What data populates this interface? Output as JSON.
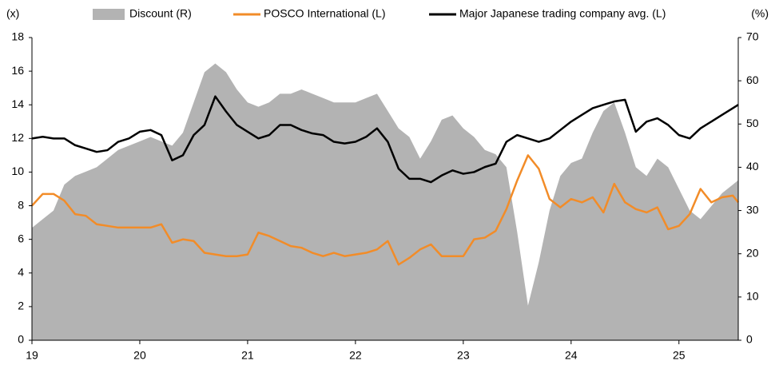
{
  "chart_data": {
    "type": "line",
    "y_axis_label": "(x)",
    "y2_axis_label": "(%)",
    "x": [
      19.0,
      19.1,
      19.2,
      19.3,
      19.4,
      19.5,
      19.6,
      19.7,
      19.8,
      19.9,
      20.0,
      20.1,
      20.2,
      20.3,
      20.4,
      20.5,
      20.6,
      20.7,
      20.8,
      20.9,
      21.0,
      21.1,
      21.2,
      21.3,
      21.4,
      21.5,
      21.6,
      21.7,
      21.8,
      21.9,
      22.0,
      22.1,
      22.2,
      22.3,
      22.4,
      22.5,
      22.6,
      22.7,
      22.8,
      22.9,
      23.0,
      23.1,
      23.2,
      23.3,
      23.4,
      23.5,
      23.6,
      23.7,
      23.8,
      23.9,
      24.0,
      24.1,
      24.2,
      24.3,
      24.4,
      24.5,
      24.6,
      24.7,
      24.8,
      24.9,
      25.0,
      25.1,
      25.2,
      25.3,
      25.4,
      25.5,
      25.55
    ],
    "series": [
      {
        "name": "Discount (R)",
        "color": "#b3b3b3",
        "kind": "area",
        "axis": "y2",
        "values": [
          26,
          28,
          30,
          36,
          38,
          39,
          40,
          42,
          44,
          45,
          46,
          47,
          46,
          45,
          48,
          55,
          62,
          64,
          62,
          58,
          55,
          54,
          55,
          57,
          57,
          58,
          57,
          56,
          55,
          55,
          55,
          56,
          57,
          53,
          49,
          47,
          42,
          46,
          51,
          52,
          49,
          47,
          44,
          43,
          40,
          25,
          8,
          18,
          30,
          38,
          41,
          42,
          48,
          53,
          55,
          48,
          40,
          38,
          42,
          40,
          35,
          30,
          28,
          31,
          34,
          36,
          37
        ]
      },
      {
        "name": "POSCO International (L)",
        "color": "#f28c28",
        "kind": "line",
        "axis": "y",
        "values": [
          8.0,
          8.7,
          8.7,
          8.3,
          7.5,
          7.4,
          6.9,
          6.8,
          6.7,
          6.7,
          6.7,
          6.7,
          6.9,
          5.8,
          6.0,
          5.9,
          5.2,
          5.1,
          5.0,
          5.0,
          5.1,
          6.4,
          6.2,
          5.9,
          5.6,
          5.5,
          5.2,
          5.0,
          5.2,
          5.0,
          5.1,
          5.2,
          5.4,
          5.9,
          4.5,
          4.9,
          5.4,
          5.7,
          5.0,
          5.0,
          5.0,
          6.0,
          6.1,
          6.5,
          7.8,
          9.5,
          11.0,
          10.2,
          8.4,
          7.9,
          8.4,
          8.2,
          8.5,
          7.6,
          9.3,
          8.2,
          7.8,
          7.6,
          7.9,
          6.6,
          6.8,
          7.5,
          9.0,
          8.2,
          8.5,
          8.6,
          8.2
        ]
      },
      {
        "name": "Major Japanese trading company avg. (L)",
        "color": "#000000",
        "kind": "line",
        "axis": "y",
        "values": [
          12.0,
          12.1,
          12.0,
          12.0,
          11.6,
          11.4,
          11.2,
          11.3,
          11.8,
          12.0,
          12.4,
          12.5,
          12.2,
          10.7,
          11.0,
          12.2,
          12.8,
          14.5,
          13.6,
          12.8,
          12.4,
          12.0,
          12.2,
          12.8,
          12.8,
          12.5,
          12.3,
          12.2,
          11.8,
          11.7,
          11.8,
          12.1,
          12.6,
          11.8,
          10.2,
          9.6,
          9.6,
          9.4,
          9.8,
          10.1,
          9.9,
          10.0,
          10.3,
          10.5,
          11.8,
          12.2,
          12.0,
          11.8,
          12.0,
          12.5,
          13.0,
          13.4,
          13.8,
          14.0,
          14.2,
          14.3,
          12.4,
          13.0,
          13.2,
          12.8,
          12.2,
          12.0,
          12.6,
          13.0,
          13.4,
          13.8,
          14.0
        ]
      }
    ],
    "xlim": [
      19,
      25.55
    ],
    "xticks": [
      19,
      20,
      21,
      22,
      23,
      24,
      25
    ],
    "ylim": [
      0,
      18
    ],
    "yticks": [
      0,
      2,
      4,
      6,
      8,
      10,
      12,
      14,
      16,
      18
    ],
    "y2lim": [
      0,
      70
    ],
    "y2ticks": [
      0,
      10,
      20,
      30,
      40,
      50,
      60,
      70
    ],
    "grid": false,
    "legend": "top"
  }
}
